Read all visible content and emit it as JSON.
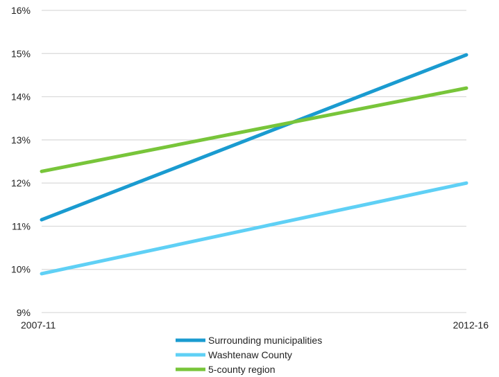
{
  "chart_data": {
    "type": "line",
    "title": "",
    "xlabel": "",
    "ylabel": "",
    "categories": [
      "2007-11",
      "2012-16"
    ],
    "ylim": [
      9,
      16
    ],
    "yticks": [
      9,
      10,
      11,
      12,
      13,
      14,
      15,
      16
    ],
    "ytick_labels": [
      "9%",
      "10%",
      "11%",
      "12%",
      "13%",
      "14%",
      "15%",
      "16%"
    ],
    "grid": true,
    "legend_position": "bottom",
    "series": [
      {
        "name": "Surrounding municipalities",
        "values": [
          11.15,
          14.97
        ],
        "color": "#1a9bd0"
      },
      {
        "name": "Washtenaw County",
        "values": [
          9.9,
          12.0
        ],
        "color": "#5fd0f5"
      },
      {
        "name": "5-county region",
        "values": [
          12.27,
          14.2
        ],
        "color": "#78c53a"
      }
    ]
  }
}
